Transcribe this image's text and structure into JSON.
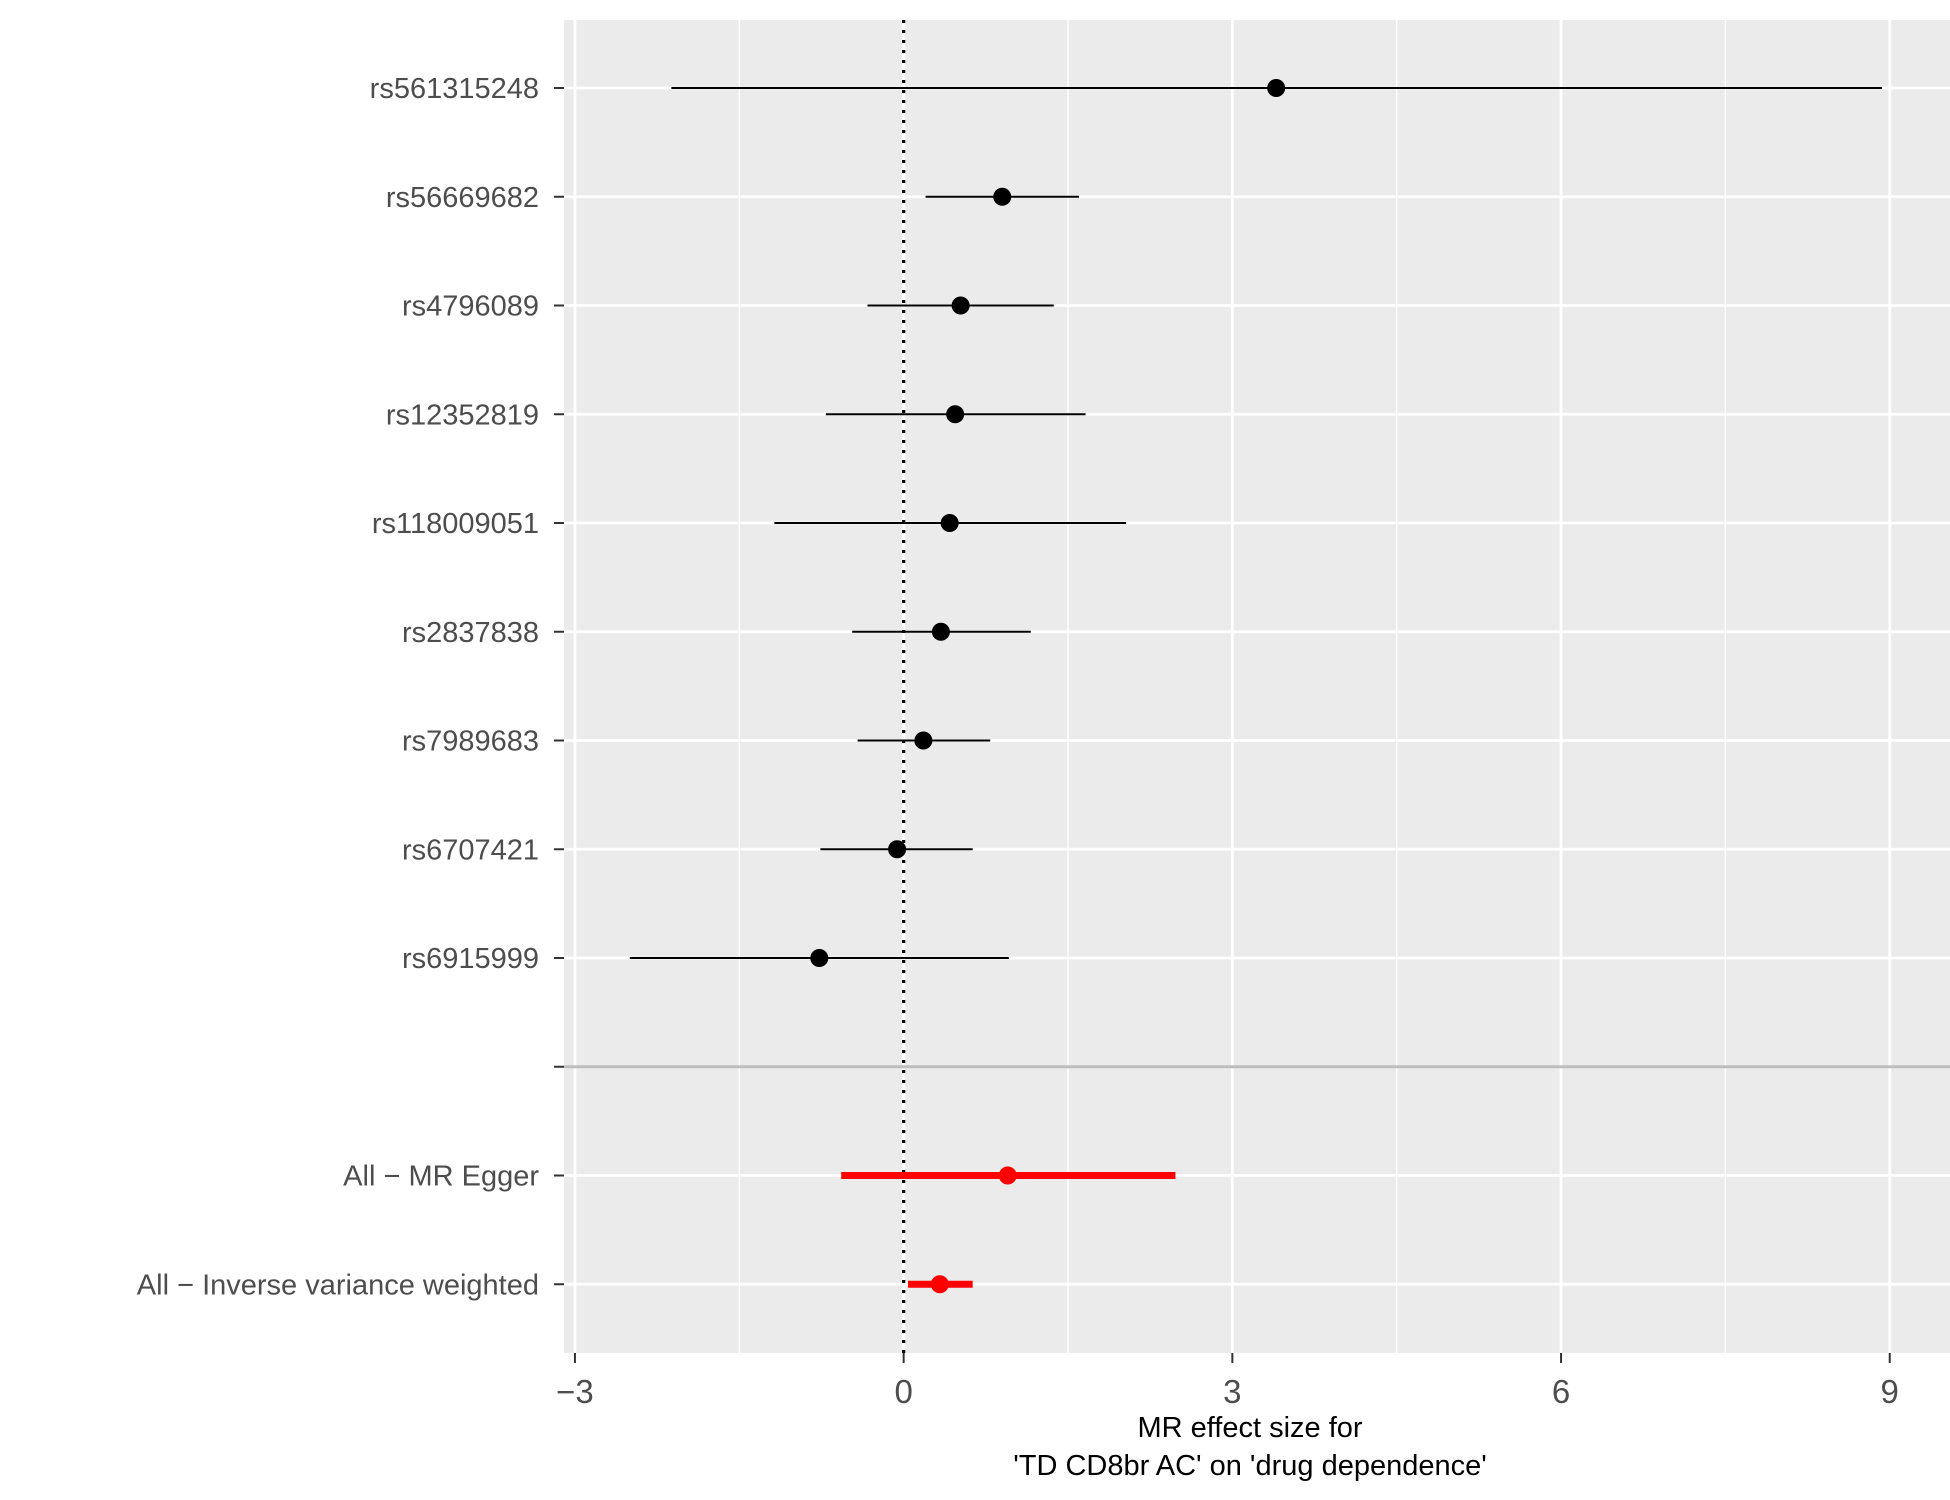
{
  "chart_data": {
    "type": "forest",
    "xlabel_lines": [
      "MR effect size for",
      "'TD CD8br AC' on 'drug dependence'"
    ],
    "ylabel": "",
    "xlim": [
      -3.1,
      9.55
    ],
    "xticks": [
      -3,
      0,
      3,
      6,
      9
    ],
    "xtick_labels": [
      "−3",
      "0",
      "3",
      "6",
      "9"
    ],
    "reference_line_x": 0,
    "grid": true,
    "panel_background": "#ebebeb",
    "rows": [
      {
        "label": "rs561315248",
        "estimate": 3.4,
        "lower": -2.12,
        "upper": 8.93,
        "kind": "snp"
      },
      {
        "label": "rs56669682",
        "estimate": 0.9,
        "lower": 0.2,
        "upper": 1.6,
        "kind": "snp"
      },
      {
        "label": "rs4796089",
        "estimate": 0.52,
        "lower": -0.33,
        "upper": 1.37,
        "kind": "snp"
      },
      {
        "label": "rs12352819",
        "estimate": 0.47,
        "lower": -0.71,
        "upper": 1.66,
        "kind": "snp"
      },
      {
        "label": "rs118009051",
        "estimate": 0.42,
        "lower": -1.18,
        "upper": 2.03,
        "kind": "snp"
      },
      {
        "label": "rs2837838",
        "estimate": 0.34,
        "lower": -0.47,
        "upper": 1.16,
        "kind": "snp"
      },
      {
        "label": "rs7989683",
        "estimate": 0.18,
        "lower": -0.42,
        "upper": 0.79,
        "kind": "snp"
      },
      {
        "label": "rs6707421",
        "estimate": -0.06,
        "lower": -0.76,
        "upper": 0.63,
        "kind": "snp"
      },
      {
        "label": "rs6915999",
        "estimate": -0.77,
        "lower": -2.5,
        "upper": 0.96,
        "kind": "snp"
      },
      {
        "label": "",
        "estimate": null,
        "lower": null,
        "upper": null,
        "kind": "separator"
      },
      {
        "label": "All − MR Egger",
        "estimate": 0.95,
        "lower": -0.57,
        "upper": 2.48,
        "kind": "summary"
      },
      {
        "label": "All − Inverse variance weighted",
        "estimate": 0.33,
        "lower": 0.04,
        "upper": 0.63,
        "kind": "summary"
      }
    ],
    "colors": {
      "snp": "#000000",
      "summary": "#ff0000",
      "grid": "#ffffff",
      "separator": "#bebebe",
      "tick_text": "#4d4d4d"
    }
  }
}
